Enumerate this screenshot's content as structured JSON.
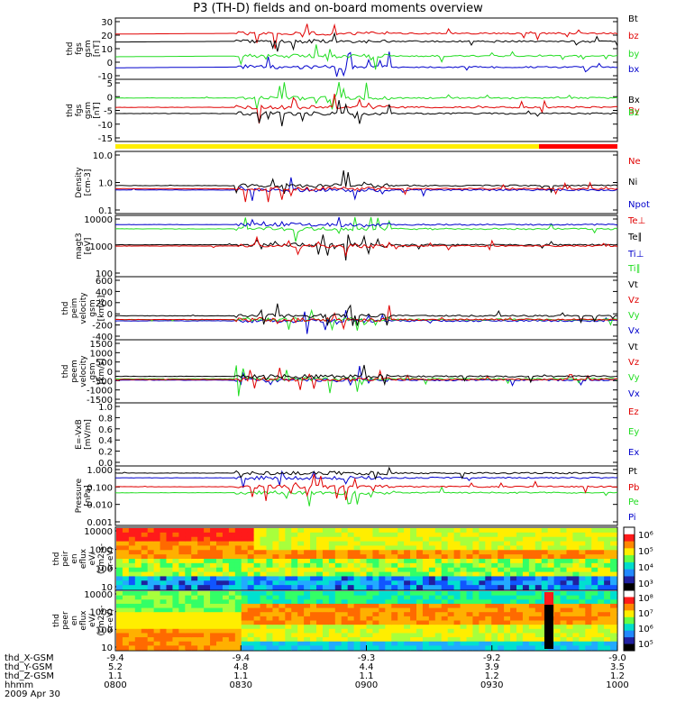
{
  "title": "P3 (TH-D) fields and on-board moments overview",
  "colors": {
    "black": "#000000",
    "red": "#e00000",
    "green": "#22dd22",
    "blue": "#0000cc",
    "yellow": "#ffee00",
    "bar_red": "#ff0000"
  },
  "chart_data": {
    "type": "line",
    "x_ticks": [
      "0800",
      "0830",
      "0900",
      "0930",
      "1000"
    ],
    "panels": [
      {
        "id": "fgs",
        "ylabel": [
          "thd",
          "fgs",
          "gsm",
          "[nT]"
        ],
        "ticks": [
          "30",
          "20",
          "10",
          "0",
          "-10"
        ],
        "ymin": -10,
        "ymax": 30,
        "series": [
          {
            "name": "Bt",
            "color": "#000000"
          },
          {
            "name": "bz",
            "color": "#e00000"
          },
          {
            "name": "by",
            "color": "#22dd22"
          },
          {
            "name": "bx",
            "color": "#0000cc"
          }
        ]
      },
      {
        "id": "fgs2",
        "ylabel": [
          "thd",
          "fgs",
          "gsm",
          "[nT]"
        ],
        "ticks": [
          "5",
          "0",
          "-5",
          "-10",
          "-15"
        ],
        "ymin": -18,
        "ymax": 10,
        "series": [
          {
            "name": "Bx",
            "color": "#000000"
          },
          {
            "name": "By",
            "color": "#e00000"
          },
          {
            "name": "Bz",
            "color": "#22dd22"
          }
        ]
      },
      {
        "id": "density",
        "ylabel": [
          "Density",
          "[cm-3]"
        ],
        "ticks": [
          "10.0",
          "1.0",
          "0.1"
        ],
        "log": true,
        "ymin": 0.1,
        "ymax": 10,
        "series": [
          {
            "name": "Ne",
            "color": "#e00000"
          },
          {
            "name": "Ni",
            "color": "#000000"
          },
          {
            "name": "Npot",
            "color": "#0000cc"
          }
        ]
      },
      {
        "id": "temp",
        "ylabel": [
          "magt3",
          "[eV]"
        ],
        "ticks": [
          "10000",
          "1000",
          "100"
        ],
        "log": true,
        "ymin": 100,
        "ymax": 10000,
        "series": [
          {
            "name": "Te⊥",
            "color": "#e00000"
          },
          {
            "name": "Te∥",
            "color": "#000000"
          },
          {
            "name": "Ti⊥",
            "color": "#0000cc"
          },
          {
            "name": "Ti∥",
            "color": "#22dd22"
          }
        ]
      },
      {
        "id": "peim",
        "ylabel": [
          "thd",
          "peim",
          "velocity",
          "gsm",
          "[km/s]"
        ],
        "ticks": [
          "600",
          "400",
          "200",
          "0",
          "-200",
          "-400"
        ],
        "ymin": -400,
        "ymax": 600,
        "series": [
          {
            "name": "Vt",
            "color": "#000000"
          },
          {
            "name": "Vz",
            "color": "#e00000"
          },
          {
            "name": "Vy",
            "color": "#22dd22"
          },
          {
            "name": "Vx",
            "color": "#0000cc"
          }
        ]
      },
      {
        "id": "peem",
        "ylabel": [
          "thd",
          "peem",
          "velocity",
          "gsm",
          "[km/s]"
        ],
        "ticks": [
          "1500",
          "1000",
          "500",
          "0",
          "-500",
          "-1000",
          "-1500"
        ],
        "ymin": -1500,
        "ymax": 1500,
        "series": [
          {
            "name": "Vt",
            "color": "#000000"
          },
          {
            "name": "Vz",
            "color": "#e00000"
          },
          {
            "name": "Vy",
            "color": "#22dd22"
          },
          {
            "name": "Vx",
            "color": "#0000cc"
          }
        ]
      },
      {
        "id": "efield",
        "ylabel": [
          "E=-VxB",
          "[mV/m]"
        ],
        "ticks": [
          "1.0",
          "0.8",
          "0.6",
          "0.4",
          "0.2",
          "0.0"
        ],
        "ymin": 0,
        "ymax": 1,
        "series": [
          {
            "name": "Ez",
            "color": "#e00000"
          },
          {
            "name": "Ey",
            "color": "#22dd22"
          },
          {
            "name": "Ex",
            "color": "#0000cc"
          }
        ]
      },
      {
        "id": "pressure",
        "ylabel": [
          "Pressure",
          "[nPa]"
        ],
        "ticks": [
          "1.000",
          "0.100",
          "0.010",
          "0.001"
        ],
        "log": true,
        "ymin": 0.001,
        "ymax": 1,
        "series": [
          {
            "name": "Pt",
            "color": "#000000"
          },
          {
            "name": "Pb",
            "color": "#e00000"
          },
          {
            "name": "Pe",
            "color": "#22dd22"
          },
          {
            "name": "Pi",
            "color": "#0000cc"
          }
        ]
      },
      {
        "id": "peir",
        "ylabel": [
          "thd",
          "peir",
          "en",
          "eflux",
          "eV/",
          "(cm2-s-",
          "sr-eV)"
        ],
        "ticks": [
          "10000",
          "1000",
          "100",
          "10"
        ],
        "colorbar": [
          "10⁶",
          "10⁵",
          "10⁴",
          "10³"
        ]
      },
      {
        "id": "peer",
        "ylabel": [
          "thd",
          "peer",
          "en",
          "eflux",
          "eV/",
          "(cm2-s-",
          "sr-eV)"
        ],
        "ticks": [
          "10000",
          "1000",
          "100",
          "10"
        ],
        "colorbar": [
          "10⁸",
          "10⁷",
          "10⁶",
          "10⁵"
        ]
      }
    ],
    "footer": {
      "rows": [
        {
          "label": "thd_X-GSM",
          "values": [
            "-9.4",
            "-9.4",
            "-9.3",
            "-9.2",
            "-9.0"
          ]
        },
        {
          "label": "thd_Y-GSM",
          "values": [
            "5.2",
            "4.8",
            "4.4",
            "3.9",
            "3.5"
          ]
        },
        {
          "label": "thd_Z-GSM",
          "values": [
            "1.1",
            "1.1",
            "1.1",
            "1.2",
            "1.2"
          ]
        },
        {
          "label": "hhmm",
          "values": [
            "0800",
            "0830",
            "0900",
            "0930",
            "1000"
          ]
        }
      ],
      "date": "2009 Apr 30"
    }
  }
}
